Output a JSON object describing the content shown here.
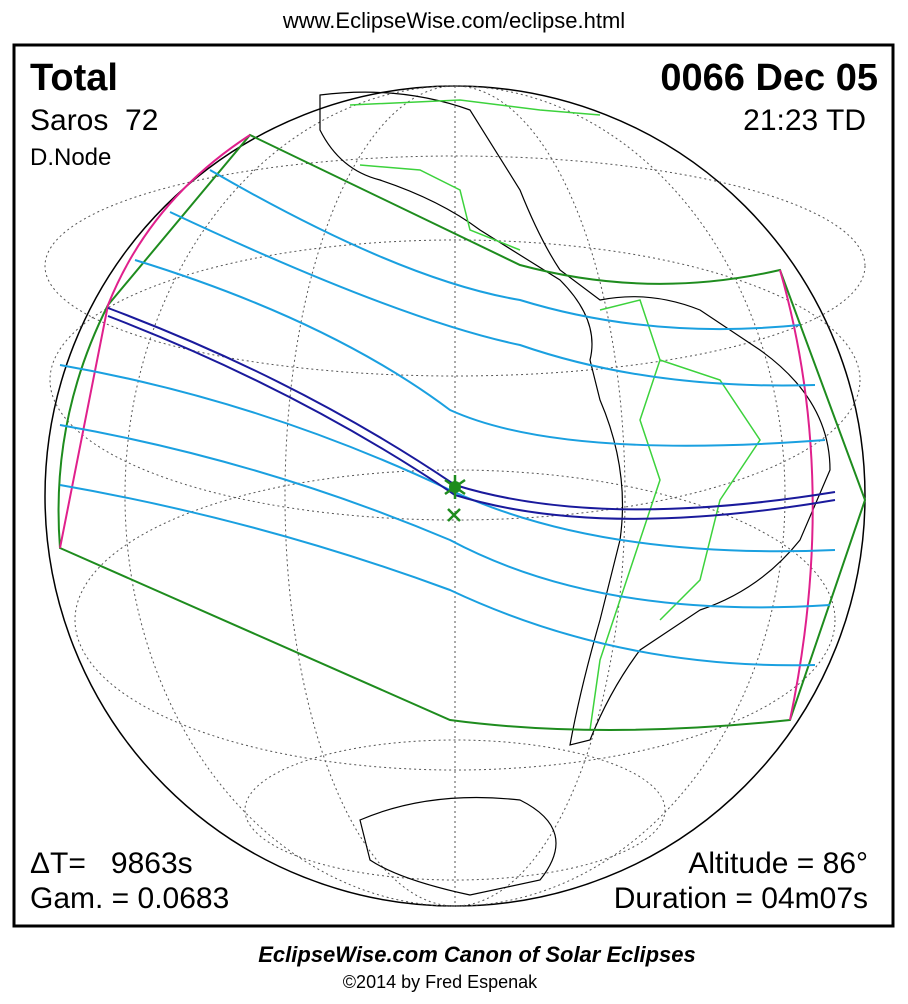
{
  "header": {
    "url": "www.EclipseWise.com/eclipse.html"
  },
  "eclipse": {
    "type": "Total",
    "saros": "Saros  72",
    "node": "D.Node",
    "date": "0066 Dec 05",
    "time": "21:23 TD",
    "delta_t": "ΔT=   9863s",
    "gamma": "Gam. = 0.0683",
    "altitude": "Altitude = 86°",
    "duration": "Duration = 04m07s"
  },
  "footer": {
    "title": "EclipseWise.com Canon of Solar Eclipses",
    "credit": "©2014 by Fred Espenak"
  }
}
